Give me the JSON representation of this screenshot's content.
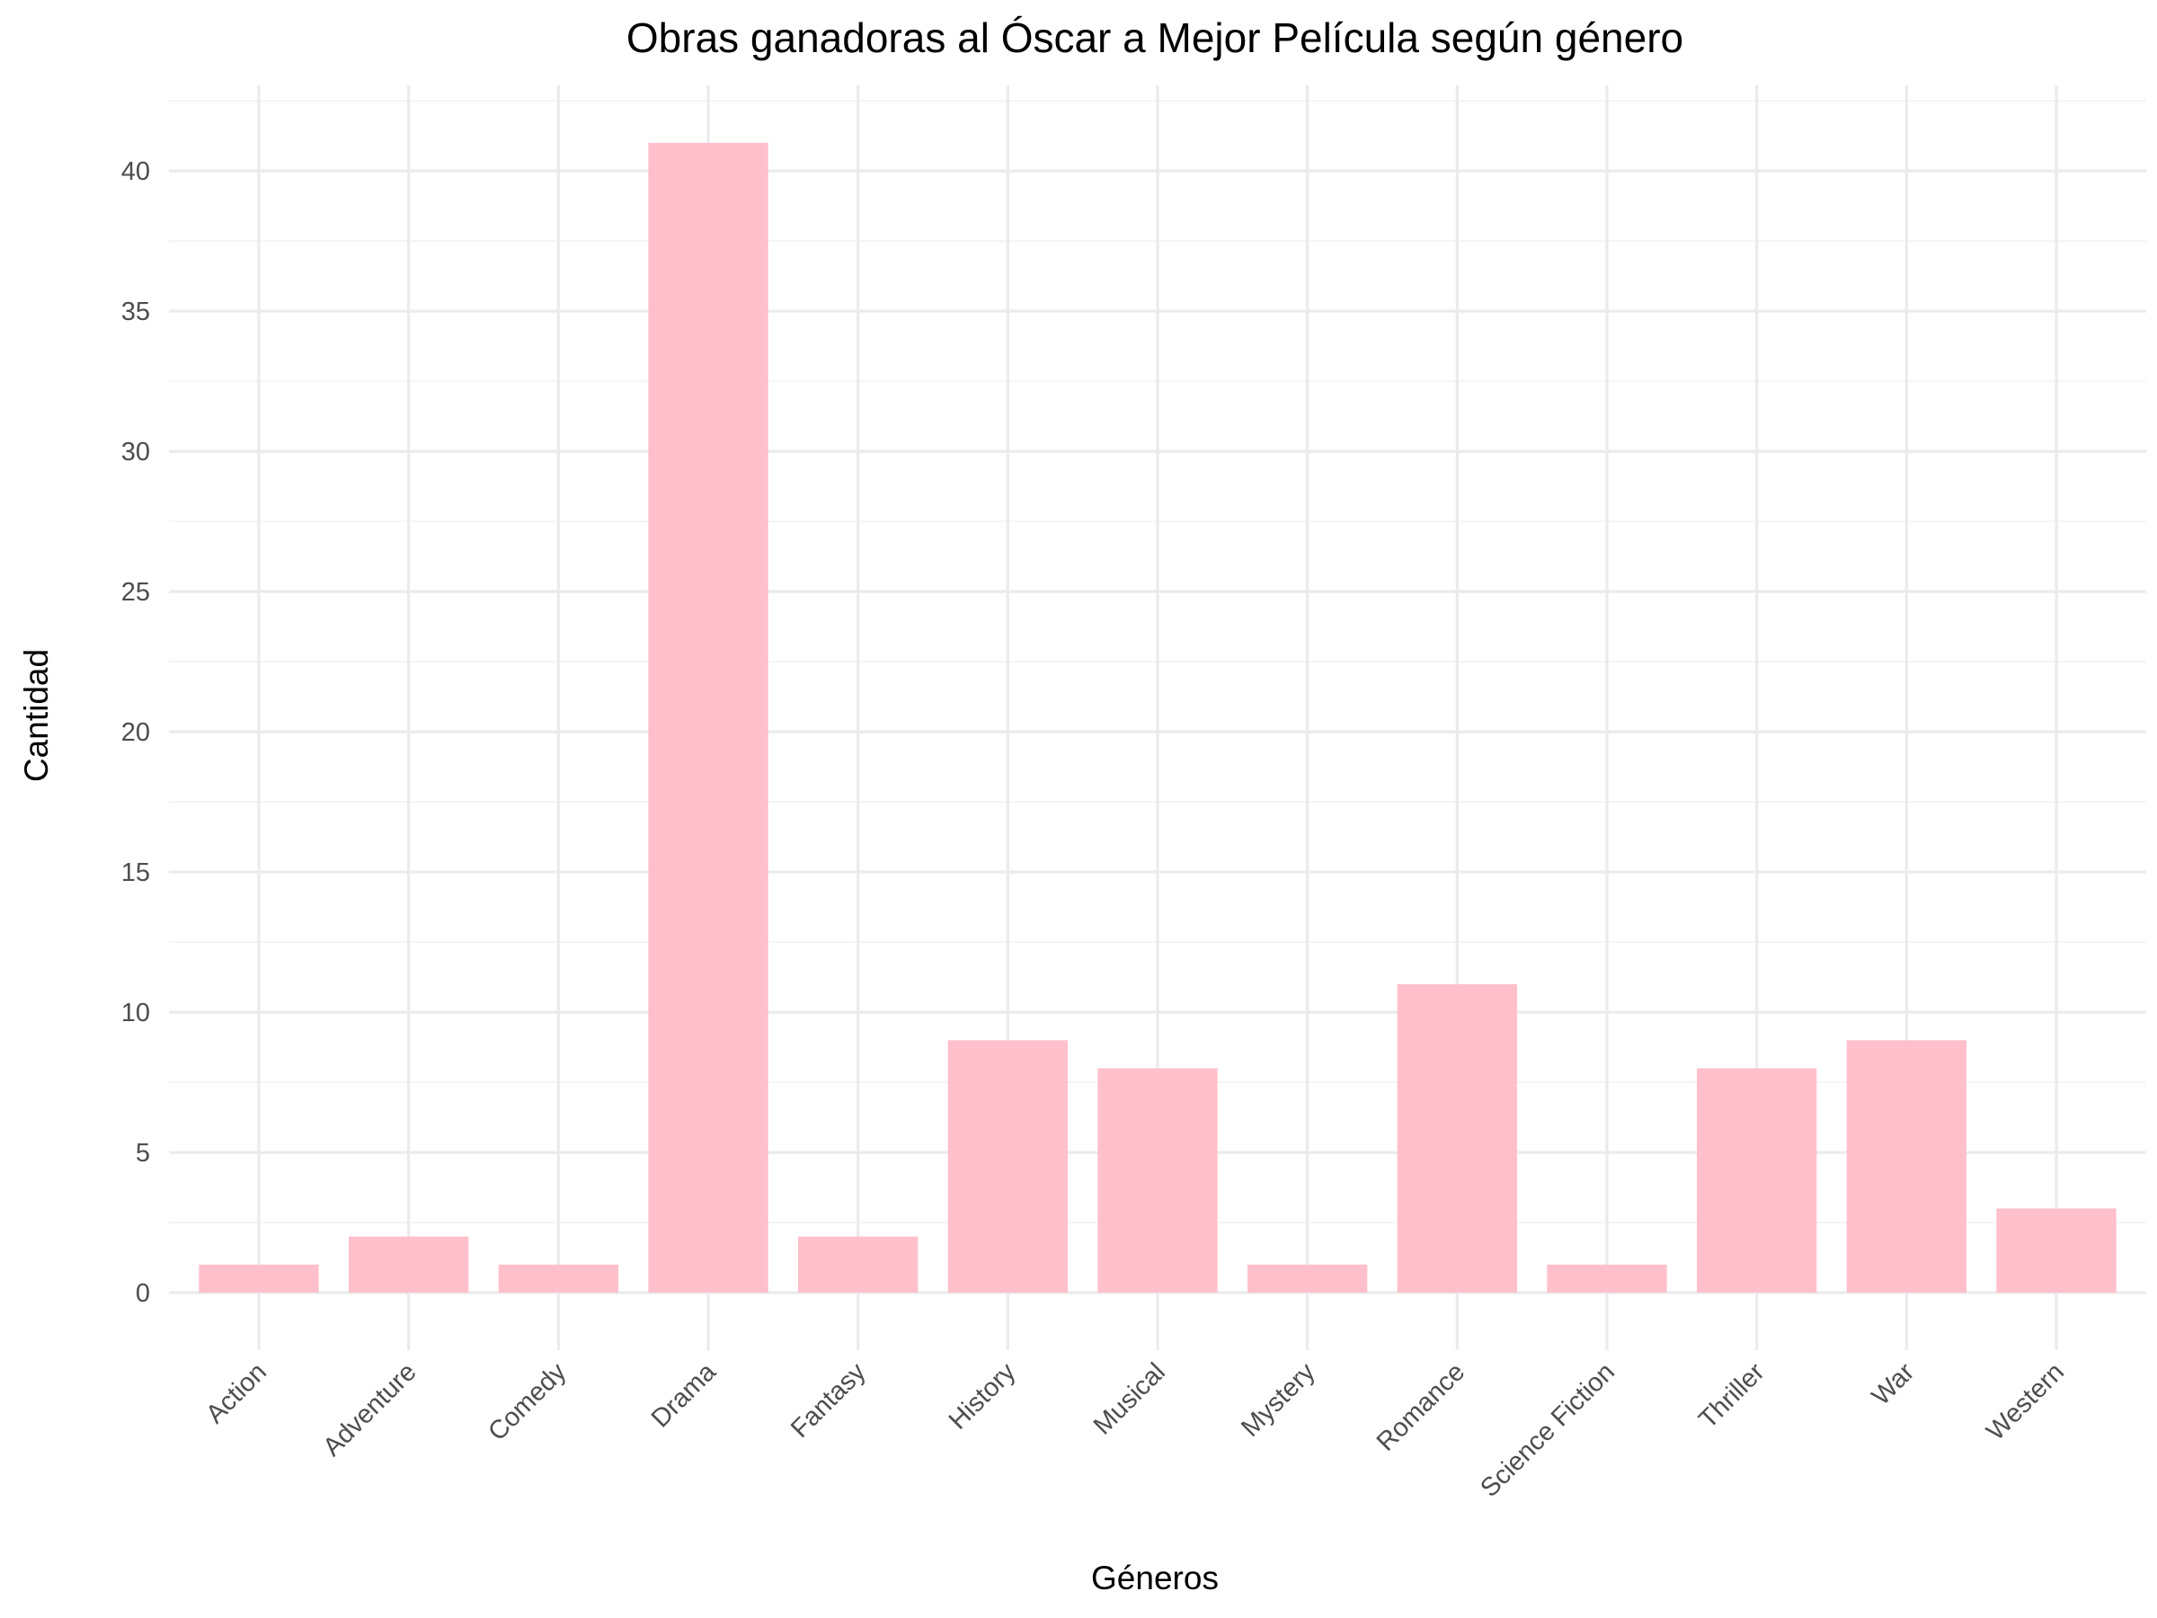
{
  "chart_data": {
    "type": "bar",
    "title": "Obras ganadoras al Óscar a Mejor Película según género",
    "xlabel": "Géneros",
    "ylabel": "Cantidad",
    "categories": [
      "Action",
      "Adventure",
      "Comedy",
      "Drama",
      "Fantasy",
      "History",
      "Musical",
      "Mystery",
      "Romance",
      "Science Fiction",
      "Thriller",
      "War",
      "Western"
    ],
    "values": [
      1,
      2,
      1,
      41,
      2,
      9,
      8,
      1,
      11,
      1,
      8,
      9,
      3
    ],
    "ylim": [
      -2.05,
      43.05
    ],
    "yticks": [
      0,
      5,
      10,
      15,
      20,
      25,
      30,
      35,
      40
    ],
    "grid": true,
    "legend": "none",
    "bar_color": "#FFC0CB"
  }
}
